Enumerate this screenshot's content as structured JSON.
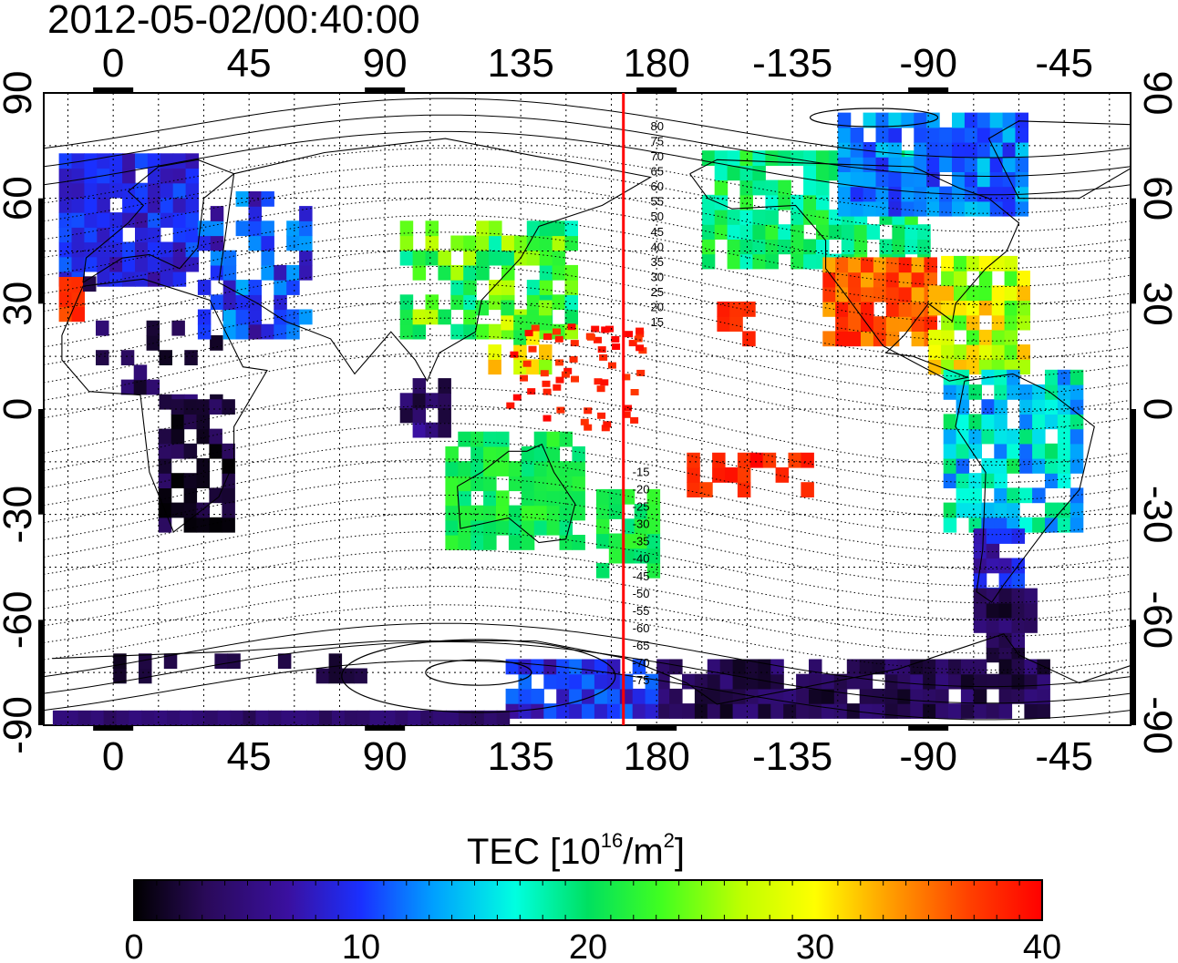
{
  "header": {
    "timestamp": "2012-05-02/00:40:00"
  },
  "map": {
    "top_lon_ticks": [
      "0",
      "45",
      "90",
      "135",
      "180",
      "-135",
      "-90",
      "-45"
    ],
    "bottom_lon_ticks": [
      "0",
      "45",
      "90",
      "135",
      "180",
      "-135",
      "-90",
      "-45"
    ],
    "left_lat_ticks": [
      "90",
      "60",
      "30",
      "0",
      "-30",
      "-60",
      "-90"
    ],
    "right_lat_ticks": [
      "90",
      "60",
      "30",
      "0",
      "-30",
      "-60",
      "-90"
    ],
    "lon_ticks_deg": [
      0,
      45,
      90,
      135,
      180,
      225,
      270,
      315
    ],
    "lat_ticks_deg": [
      90,
      60,
      30,
      0,
      -30,
      -60,
      -90
    ],
    "lon_range_deg": [
      -23,
      337
    ],
    "lat_range_deg": [
      -90,
      90
    ],
    "reference_meridian_deg": 169,
    "reference_meridian_color": "#ff0000",
    "contour_labels_north": [
      "80",
      "75",
      "70",
      "65",
      "60",
      "55",
      "50",
      "45",
      "40",
      "35",
      "30",
      "25",
      "20",
      "15"
    ],
    "contour_labels_south": [
      "-15",
      "-20",
      "-25",
      "-30",
      "-35",
      "-40",
      "-45",
      "-50",
      "-55",
      "-60",
      "-65",
      "-70",
      "-75"
    ],
    "contour_label_lat_north": [
      80,
      75,
      70,
      65,
      60,
      55,
      50,
      45,
      40,
      35,
      30,
      25,
      20,
      15
    ],
    "contour_label_lat_south": [
      -15,
      -20,
      -25,
      -30,
      -35,
      -40,
      -45,
      -50,
      -55,
      -60,
      -65,
      -70,
      -75
    ]
  },
  "colorbar": {
    "title_main": "TEC  [10",
    "title_sup": "16",
    "title_mid": "/m",
    "title_sup2": "2",
    "title_end": "]",
    "tick_labels": [
      "0",
      "10",
      "20",
      "30",
      "40"
    ],
    "tick_values": [
      0,
      10,
      20,
      30,
      40
    ],
    "range": [
      0,
      40
    ],
    "colors": [
      "#000000",
      "#2a0a5a",
      "#3a10a0",
      "#1a30ff",
      "#00a0ff",
      "#00ffe0",
      "#00e060",
      "#40ff20",
      "#c0ff00",
      "#ffff00",
      "#ffa000",
      "#ff4000",
      "#ff0000"
    ]
  }
}
